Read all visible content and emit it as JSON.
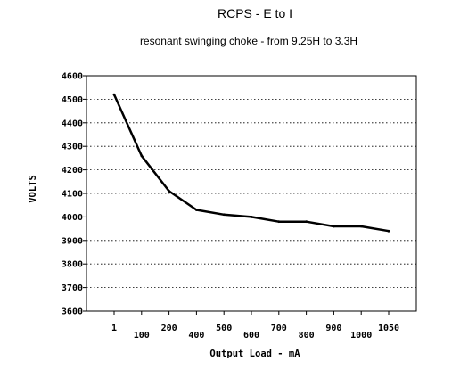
{
  "chart_data": {
    "type": "line",
    "title": "RCPS  -  E to I",
    "subtitle": "resonant swinging choke  -  from 9.25H to 3.3H",
    "xlabel": "Output Load - mA",
    "ylabel": "VOLTS",
    "categories": [
      "1",
      "100",
      "200",
      "400",
      "500",
      "600",
      "700",
      "800",
      "900",
      "1000",
      "1050"
    ],
    "yticks": [
      3600,
      3700,
      3800,
      3900,
      4000,
      4100,
      4200,
      4300,
      4400,
      4500,
      4600
    ],
    "ylim": [
      3600,
      4600
    ],
    "grid": "horizontal dotted",
    "series": [
      {
        "values": [
          4520,
          4260,
          4110,
          4030,
          4010,
          4000,
          3980,
          3980,
          3960,
          3960,
          3940
        ]
      }
    ]
  },
  "colors": {
    "line": "#000000",
    "grid": "#000000",
    "background": "#ffffff"
  }
}
